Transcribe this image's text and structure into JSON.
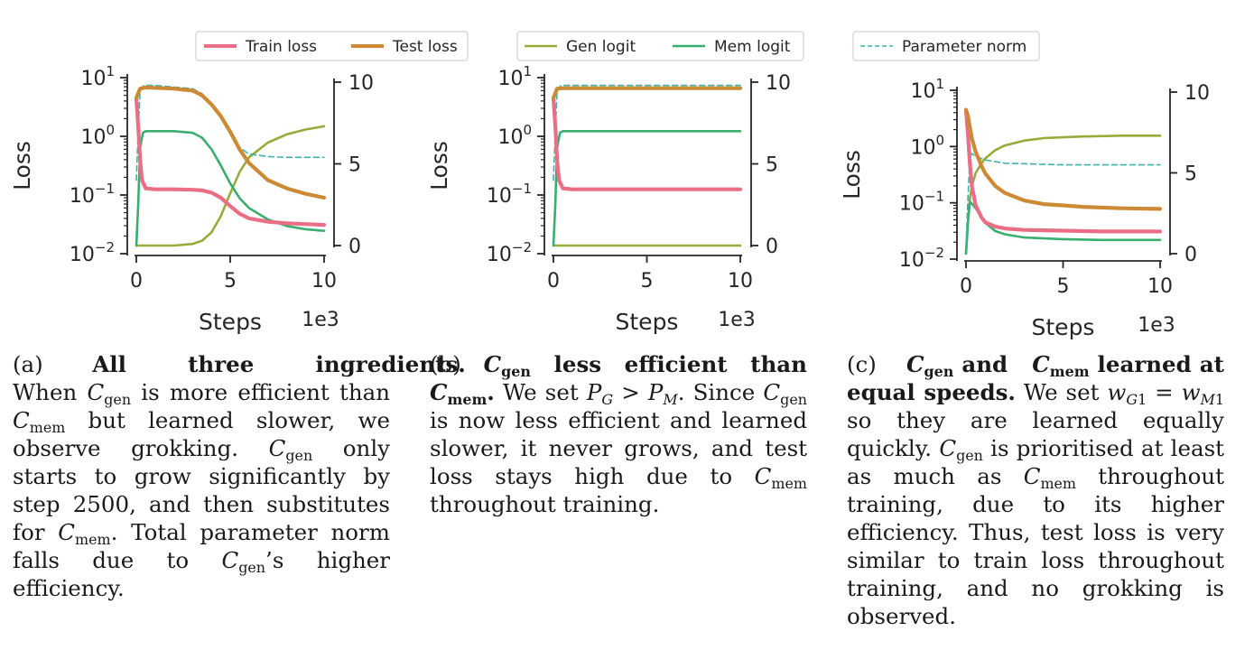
{
  "colors": {
    "train_loss": "#ea6f86",
    "test_loss": "#cc8a35",
    "gen_logit": "#9aaa3a",
    "mem_logit": "#3aae70",
    "param_norm": "#3fb2ad"
  },
  "legends": {
    "a": [
      "Train loss",
      "Test loss"
    ],
    "b": [
      "Gen logit",
      "Mem logit"
    ],
    "c": [
      "Parameter norm"
    ]
  },
  "chart_data": [
    {
      "type": "line",
      "panel": "a",
      "xlabel": "Steps",
      "ylabel": "Loss",
      "x_multiplier": "1e3",
      "xlim": [
        0,
        10
      ],
      "xticks": [
        "0",
        "5",
        "10"
      ],
      "ylim_left_log": [
        0.01,
        10
      ],
      "yticks_left": [
        "10^1",
        "10^0",
        "10^-1",
        "10^-2"
      ],
      "ylim_right": [
        0,
        10
      ],
      "yticks_right": [
        "10",
        "5",
        "0"
      ],
      "series": [
        {
          "name": "Train loss",
          "axis": "left",
          "x": [
            0,
            0.1,
            0.2,
            0.3,
            0.5,
            1,
            2,
            3,
            3.5,
            4,
            4.5,
            5,
            5.5,
            6,
            7,
            8,
            9,
            10
          ],
          "values": [
            4.5,
            1.5,
            0.4,
            0.18,
            0.13,
            0.125,
            0.125,
            0.123,
            0.12,
            0.11,
            0.09,
            0.065,
            0.048,
            0.04,
            0.035,
            0.033,
            0.032,
            0.031
          ]
        },
        {
          "name": "Test loss",
          "axis": "left",
          "x": [
            0,
            0.2,
            0.5,
            1,
            2,
            3,
            3.5,
            4,
            4.5,
            5,
            5.5,
            6,
            7,
            8,
            9,
            10
          ],
          "values": [
            4.5,
            6.5,
            6.8,
            6.7,
            6.5,
            6.0,
            5.0,
            3.5,
            2.2,
            1.2,
            0.6,
            0.35,
            0.18,
            0.13,
            0.105,
            0.09
          ]
        },
        {
          "name": "Gen logit",
          "axis": "right",
          "x": [
            0,
            1,
            2,
            3,
            3.5,
            4,
            4.5,
            5,
            5.5,
            6,
            7,
            8,
            9,
            10
          ],
          "values": [
            0,
            0,
            0,
            0.1,
            0.3,
            0.8,
            1.8,
            3.2,
            4.5,
            5.4,
            6.3,
            6.8,
            7.1,
            7.3
          ]
        },
        {
          "name": "Mem logit",
          "axis": "right",
          "x": [
            0,
            0.1,
            0.2,
            0.35,
            0.5,
            1,
            2,
            3,
            3.5,
            4,
            4.5,
            5,
            5.5,
            6,
            7,
            8,
            9,
            10
          ],
          "values": [
            0,
            2.5,
            6.0,
            6.9,
            7.0,
            7.0,
            7.0,
            6.9,
            6.6,
            5.9,
            4.9,
            3.8,
            2.9,
            2.3,
            1.6,
            1.2,
            1.0,
            0.9
          ]
        },
        {
          "name": "Parameter norm",
          "axis": "right",
          "style": "dashed",
          "x": [
            0,
            0.1,
            0.2,
            0.4,
            1,
            2,
            3,
            3.5,
            4,
            4.5,
            5,
            5.5,
            6,
            7,
            8,
            9,
            10
          ],
          "values": [
            4.0,
            7.0,
            9.5,
            9.8,
            9.8,
            9.7,
            9.6,
            9.3,
            8.7,
            7.9,
            6.9,
            6.0,
            5.6,
            5.45,
            5.4,
            5.4,
            5.4
          ]
        }
      ]
    },
    {
      "type": "line",
      "panel": "b",
      "xlabel": "Steps",
      "ylabel": "Loss",
      "x_multiplier": "1e3",
      "xlim": [
        0,
        10
      ],
      "xticks": [
        "0",
        "5",
        "10"
      ],
      "ylim_left_log": [
        0.01,
        10
      ],
      "yticks_left": [
        "10^1",
        "10^0",
        "10^-1",
        "10^-2"
      ],
      "ylim_right": [
        0,
        10
      ],
      "yticks_right": [
        "10",
        "5",
        "0"
      ],
      "series": [
        {
          "name": "Train loss",
          "axis": "left",
          "x": [
            0,
            0.1,
            0.2,
            0.3,
            0.5,
            1,
            5,
            10
          ],
          "values": [
            4.5,
            1.5,
            0.4,
            0.18,
            0.13,
            0.125,
            0.125,
            0.125
          ]
        },
        {
          "name": "Test loss",
          "axis": "left",
          "x": [
            0,
            0.2,
            0.5,
            1,
            5,
            10
          ],
          "values": [
            4.5,
            6.5,
            6.6,
            6.6,
            6.6,
            6.6
          ]
        },
        {
          "name": "Gen logit",
          "axis": "right",
          "x": [
            0,
            5,
            10
          ],
          "values": [
            0,
            0,
            0
          ]
        },
        {
          "name": "Mem logit",
          "axis": "right",
          "x": [
            0,
            0.1,
            0.2,
            0.35,
            0.5,
            1,
            5,
            10
          ],
          "values": [
            0,
            2.5,
            6.0,
            6.9,
            7.0,
            7.0,
            7.0,
            7.0
          ]
        },
        {
          "name": "Parameter norm",
          "axis": "right",
          "style": "dashed",
          "x": [
            0,
            0.1,
            0.2,
            0.4,
            1,
            5,
            10
          ],
          "values": [
            4.0,
            7.0,
            9.5,
            9.8,
            9.8,
            9.8,
            9.8
          ]
        }
      ]
    },
    {
      "type": "line",
      "panel": "c",
      "xlabel": "Steps",
      "ylabel": "Loss",
      "x_multiplier": "1e3",
      "xlim": [
        0,
        10
      ],
      "xticks": [
        "0",
        "5",
        "10"
      ],
      "ylim_left_log": [
        0.01,
        10
      ],
      "yticks_left": [
        "10^1",
        "10^0",
        "10^-1",
        "10^-2"
      ],
      "ylim_right": [
        0,
        10
      ],
      "yticks_right": [
        "10",
        "5",
        "0"
      ],
      "series": [
        {
          "name": "Train loss",
          "axis": "left",
          "x": [
            0,
            0.1,
            0.2,
            0.3,
            0.5,
            0.8,
            1,
            1.5,
            2,
            3,
            5,
            7,
            10
          ],
          "values": [
            4.5,
            1.6,
            0.5,
            0.2,
            0.09,
            0.055,
            0.045,
            0.038,
            0.035,
            0.033,
            0.032,
            0.031,
            0.031
          ]
        },
        {
          "name": "Test loss",
          "axis": "left",
          "x": [
            0,
            0.1,
            0.2,
            0.3,
            0.5,
            0.8,
            1,
            1.5,
            2,
            3,
            4,
            5,
            6,
            8,
            10
          ],
          "values": [
            4.5,
            3.5,
            2.2,
            1.4,
            0.8,
            0.45,
            0.33,
            0.2,
            0.15,
            0.11,
            0.095,
            0.09,
            0.085,
            0.08,
            0.078
          ]
        },
        {
          "name": "Gen logit",
          "axis": "right",
          "x": [
            0,
            0.1,
            0.2,
            0.3,
            0.5,
            0.8,
            1,
            1.5,
            2,
            3,
            4,
            5,
            6,
            8,
            10
          ],
          "values": [
            0,
            2.0,
            3.4,
            4.2,
            5.0,
            5.6,
            5.9,
            6.4,
            6.7,
            7.0,
            7.15,
            7.2,
            7.25,
            7.3,
            7.3
          ]
        },
        {
          "name": "Mem logit",
          "axis": "right",
          "x": [
            0,
            0.1,
            0.2,
            0.3,
            0.5,
            0.8,
            1,
            1.5,
            2,
            3,
            5,
            7,
            10
          ],
          "values": [
            0,
            2.0,
            3.2,
            3.1,
            2.8,
            2.3,
            1.9,
            1.4,
            1.2,
            1.0,
            0.9,
            0.85,
            0.85
          ]
        },
        {
          "name": "Parameter norm",
          "axis": "right",
          "style": "dashed",
          "x": [
            0,
            0.1,
            0.2,
            0.3,
            0.5,
            1,
            2,
            5,
            10
          ],
          "values": [
            0.5,
            3.5,
            6.0,
            6.2,
            6.0,
            5.8,
            5.6,
            5.5,
            5.5
          ]
        }
      ]
    }
  ]
}
